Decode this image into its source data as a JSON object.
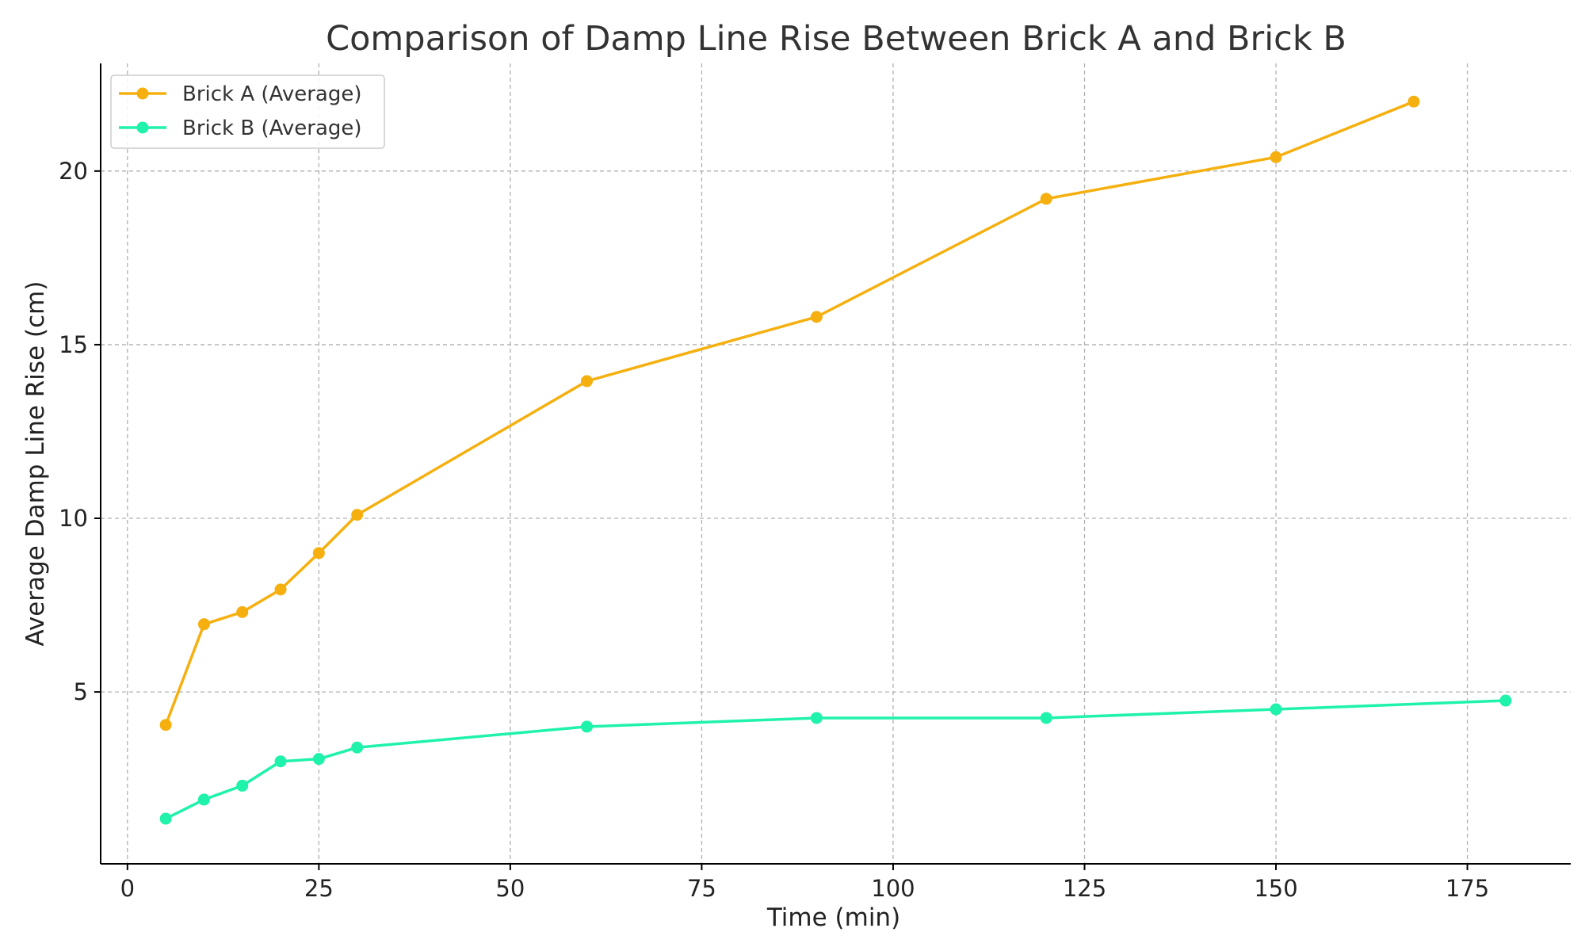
{
  "chart_data": {
    "type": "line",
    "title": "Comparison of Damp Line Rise Between Brick A and Brick B",
    "xlabel": "Time (min)",
    "ylabel": "Average Damp Line Rise (cm)",
    "xlim": [
      -3.5,
      188.5
    ],
    "ylim": [
      0.05,
      23.1
    ],
    "xticks": [
      0,
      25,
      50,
      75,
      100,
      125,
      150,
      175
    ],
    "yticks": [
      5,
      10,
      15,
      20
    ],
    "grid": true,
    "legend_position": "top-left",
    "series": [
      {
        "name": "Brick A (Average)",
        "color": "#f5b010",
        "x": [
          5,
          10,
          15,
          20,
          25,
          30,
          60,
          90,
          120,
          150,
          168
        ],
        "y": [
          4.05,
          6.95,
          7.3,
          7.95,
          9.0,
          10.1,
          13.95,
          15.8,
          19.2,
          20.4,
          22.0
        ]
      },
      {
        "name": "Brick B (Average)",
        "color": "#1ff2aa",
        "x": [
          5,
          10,
          15,
          20,
          25,
          30,
          60,
          90,
          120,
          150,
          180
        ],
        "y": [
          1.35,
          1.9,
          2.3,
          3.0,
          3.07,
          3.4,
          4.0,
          4.25,
          4.25,
          4.5,
          4.75
        ]
      }
    ]
  }
}
